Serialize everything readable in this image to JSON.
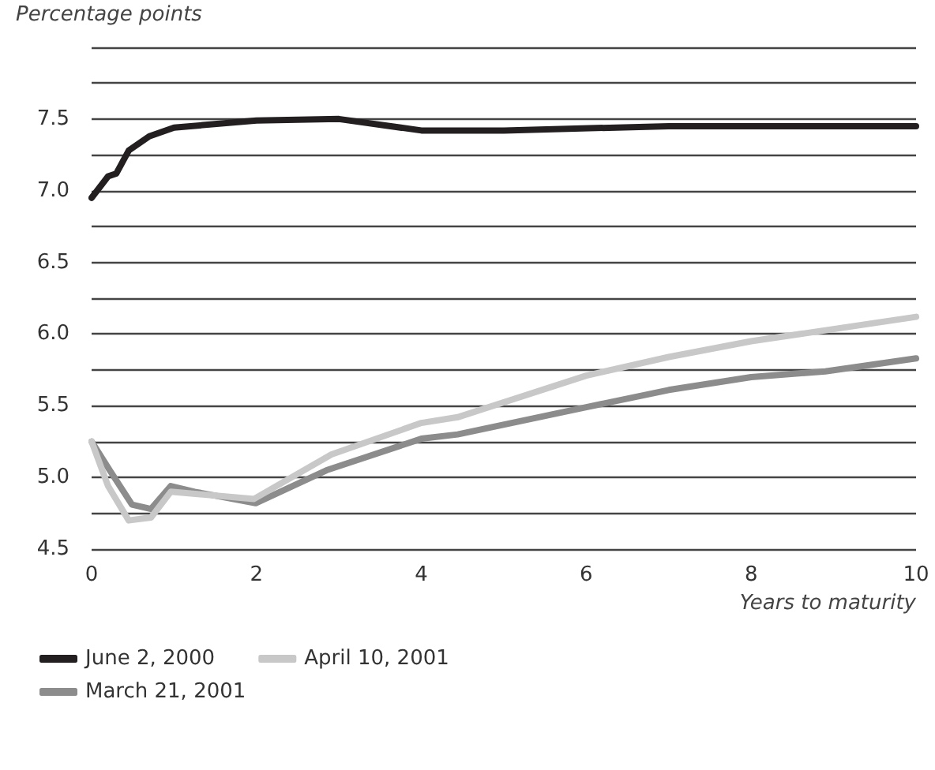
{
  "chart_data": {
    "type": "line",
    "ylabel": "Percentage points",
    "xlabel": "Years to maturity",
    "xlim": [
      0,
      10
    ],
    "xticks": [
      0,
      2,
      4,
      6,
      8,
      10
    ],
    "ylim": [
      4.5,
      8.0
    ],
    "yticks": [
      4.5,
      {
        "value": 4.75,
        "label": null
      },
      "5.0",
      {
        "value": 5.25,
        "label": null
      },
      5.5,
      {
        "value": 5.75,
        "label": null
      },
      "6.0",
      {
        "value": 6.25,
        "label": null
      },
      6.5,
      {
        "value": 6.75,
        "label": null
      },
      "7.0",
      {
        "value": 7.25,
        "label": null
      },
      7.5,
      {
        "value": 7.75,
        "label": null
      },
      {
        "value": 8.0,
        "label": null
      }
    ],
    "grid": "y",
    "legend": "bottom",
    "marker": "none",
    "line_style": "solid",
    "series": [
      {
        "name": "June 2, 2000",
        "color": "#231f20",
        "x": [
          0,
          0.2,
          0.3,
          0.45,
          0.7,
          1,
          2,
          3,
          4,
          5,
          7,
          10
        ],
        "values": [
          6.95,
          7.1,
          7.12,
          7.28,
          7.38,
          7.44,
          7.49,
          7.5,
          7.42,
          7.42,
          7.45,
          7.45
        ]
      },
      {
        "name": "March 21, 2001",
        "color": "#8c8c8c",
        "x": [
          0,
          0.22,
          0.49,
          0.72,
          0.96,
          1.25,
          1.99,
          2.85,
          4,
          4.44,
          6,
          7,
          8,
          8.9,
          10
        ],
        "values": [
          5.25,
          5.05,
          4.81,
          4.78,
          4.94,
          4.9,
          4.82,
          5.05,
          5.27,
          5.3,
          5.49,
          5.61,
          5.7,
          5.74,
          5.83
        ]
      },
      {
        "name": "April 10, 2001",
        "color": "#c8c8c8",
        "x": [
          0,
          0.2,
          0.45,
          0.72,
          0.96,
          1.97,
          2.91,
          4,
          4.44,
          6,
          7,
          8,
          10
        ],
        "values": [
          5.25,
          4.94,
          4.7,
          4.72,
          4.9,
          4.85,
          5.16,
          5.38,
          5.42,
          5.71,
          5.84,
          5.95,
          6.12
        ]
      }
    ]
  }
}
